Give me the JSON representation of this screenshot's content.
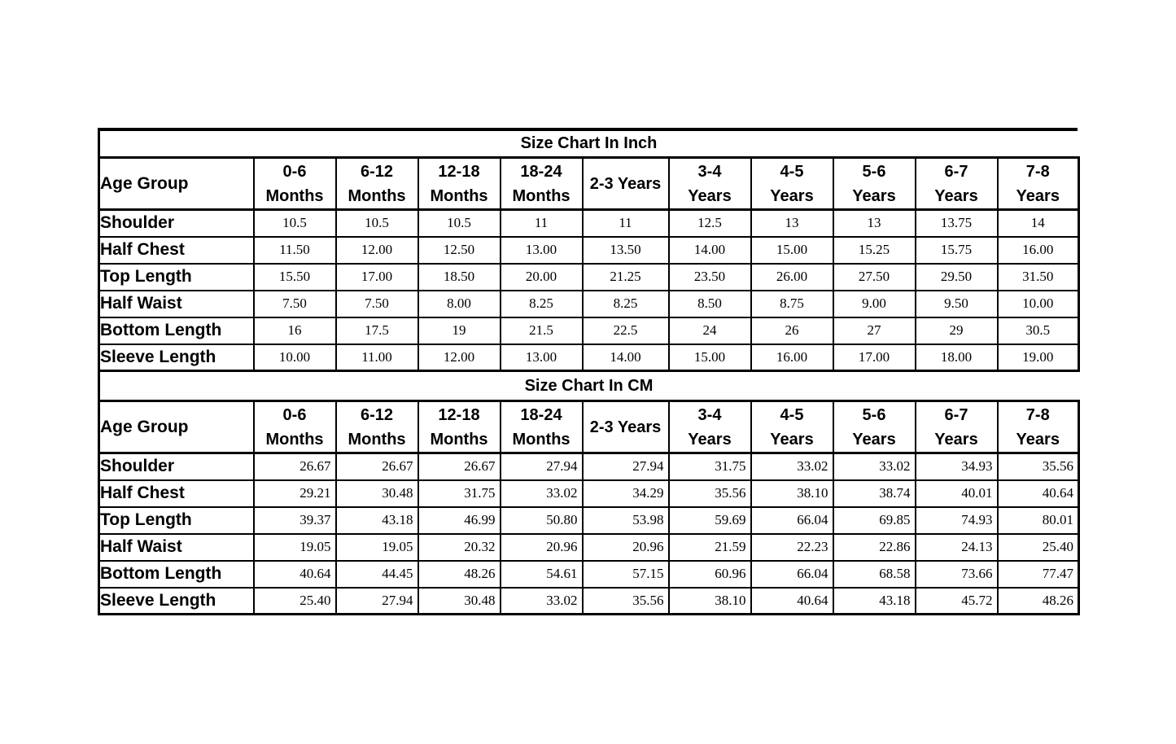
{
  "colors": {
    "background": "#ffffff",
    "border": "#000000",
    "text": "#000000"
  },
  "tables": [
    {
      "id": "inch",
      "title": "Size Chart In Inch",
      "corner_label": "Age Group",
      "columns": [
        [
          "0-6",
          "Months"
        ],
        [
          "6-12",
          "Months"
        ],
        [
          "12-18",
          "Months"
        ],
        [
          "18-24",
          "Months"
        ],
        [
          "2-3 Years"
        ],
        [
          "3-4",
          "Years"
        ],
        [
          "4-5",
          "Years"
        ],
        [
          "5-6",
          "Years"
        ],
        [
          "6-7",
          "Years"
        ],
        [
          "7-8",
          "Years"
        ]
      ],
      "value_align": "center",
      "rows": [
        {
          "label": "Shoulder",
          "values": [
            "10.5",
            "10.5",
            "10.5",
            "11",
            "11",
            "12.5",
            "13",
            "13",
            "13.75",
            "14"
          ]
        },
        {
          "label": "Half Chest",
          "values": [
            "11.50",
            "12.00",
            "12.50",
            "13.00",
            "13.50",
            "14.00",
            "15.00",
            "15.25",
            "15.75",
            "16.00"
          ]
        },
        {
          "label": "Top Length",
          "values": [
            "15.50",
            "17.00",
            "18.50",
            "20.00",
            "21.25",
            "23.50",
            "26.00",
            "27.50",
            "29.50",
            "31.50"
          ]
        },
        {
          "label": "Half Waist",
          "values": [
            "7.50",
            "7.50",
            "8.00",
            "8.25",
            "8.25",
            "8.50",
            "8.75",
            "9.00",
            "9.50",
            "10.00"
          ]
        },
        {
          "label": "Bottom Length",
          "values": [
            "16",
            "17.5",
            "19",
            "21.5",
            "22.5",
            "24",
            "26",
            "27",
            "29",
            "30.5"
          ]
        },
        {
          "label": "Sleeve Length",
          "values": [
            "10.00",
            "11.00",
            "12.00",
            "13.00",
            "14.00",
            "15.00",
            "16.00",
            "17.00",
            "18.00",
            "19.00"
          ]
        }
      ]
    },
    {
      "id": "cm",
      "title": "Size Chart In CM",
      "corner_label": "Age Group",
      "columns": [
        [
          "0-6",
          "Months"
        ],
        [
          "6-12",
          "Months"
        ],
        [
          "12-18",
          "Months"
        ],
        [
          "18-24",
          "Months"
        ],
        [
          "2-3 Years"
        ],
        [
          "3-4",
          "Years"
        ],
        [
          "4-5",
          "Years"
        ],
        [
          "5-6",
          "Years"
        ],
        [
          "6-7",
          "Years"
        ],
        [
          "7-8",
          "Years"
        ]
      ],
      "value_align": "right",
      "rows": [
        {
          "label": "Shoulder",
          "values": [
            "26.67",
            "26.67",
            "26.67",
            "27.94",
            "27.94",
            "31.75",
            "33.02",
            "33.02",
            "34.93",
            "35.56"
          ]
        },
        {
          "label": "Half Chest",
          "values": [
            "29.21",
            "30.48",
            "31.75",
            "33.02",
            "34.29",
            "35.56",
            "38.10",
            "38.74",
            "40.01",
            "40.64"
          ]
        },
        {
          "label": "Top Length",
          "values": [
            "39.37",
            "43.18",
            "46.99",
            "50.80",
            "53.98",
            "59.69",
            "66.04",
            "69.85",
            "74.93",
            "80.01"
          ]
        },
        {
          "label": "Half Waist",
          "values": [
            "19.05",
            "19.05",
            "20.32",
            "20.96",
            "20.96",
            "21.59",
            "22.23",
            "22.86",
            "24.13",
            "25.40"
          ]
        },
        {
          "label": "Bottom Length",
          "values": [
            "40.64",
            "44.45",
            "48.26",
            "54.61",
            "57.15",
            "60.96",
            "66.04",
            "68.58",
            "73.66",
            "77.47"
          ]
        },
        {
          "label": "Sleeve Length",
          "values": [
            "25.40",
            "27.94",
            "30.48",
            "33.02",
            "35.56",
            "38.10",
            "40.64",
            "43.18",
            "45.72",
            "48.26"
          ]
        }
      ]
    }
  ]
}
